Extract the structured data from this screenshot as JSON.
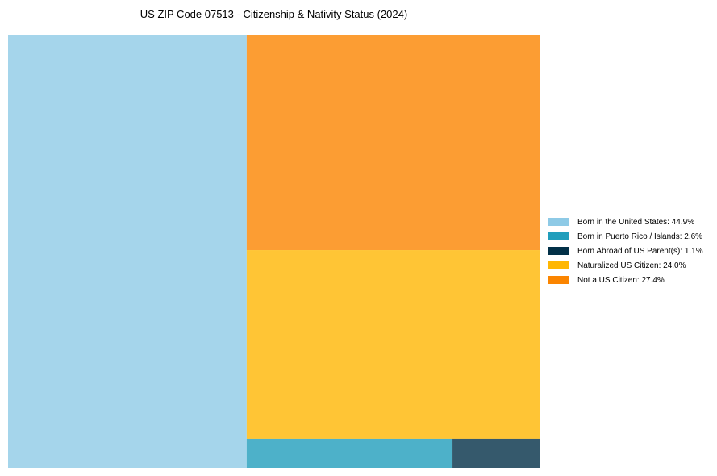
{
  "chart_data": {
    "type": "treemap",
    "title": "US ZIP Code 07513 - Citizenship & Nativity Status (2024)",
    "items": [
      {
        "label": "Born in the United States",
        "value": 44.9,
        "color": "#8ecae6",
        "legend": "Born in the United States: 44.9%"
      },
      {
        "label": "Born in Puerto Rico / Islands",
        "value": 2.6,
        "color": "#219ebc",
        "legend": "Born in Puerto Rico / Islands: 2.6%"
      },
      {
        "label": "Born Abroad of US Parent(s)",
        "value": 1.1,
        "color": "#023047",
        "legend": "Born Abroad of US Parent(s): 1.1%"
      },
      {
        "label": "Naturalized US Citizen",
        "value": 24.0,
        "color": "#ffb703",
        "legend": "Naturalized US Citizen: 24.0%"
      },
      {
        "label": "Not a US Citizen",
        "value": 27.4,
        "color": "#fb8500",
        "legend": "Not a US Citizen: 27.4%"
      }
    ],
    "legend_position": "right"
  }
}
